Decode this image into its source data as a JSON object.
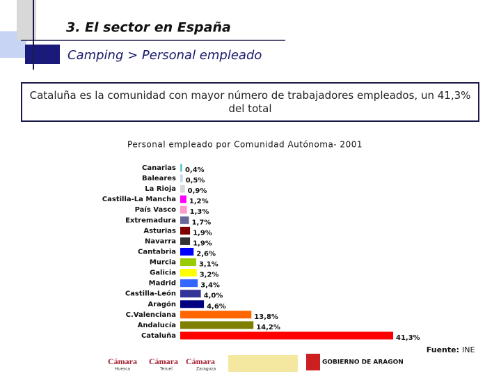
{
  "header": {
    "title": "3. El sector en España",
    "subtitle": "Camping > Personal empleado"
  },
  "callout": {
    "text": "Cataluña es la comunidad con mayor número de trabajadores empleados, un 41,3% del total"
  },
  "chart_data": {
    "type": "bar",
    "orientation": "horizontal",
    "title": "Personal empleado por Comunidad Autónoma- 2001",
    "categories": [
      "Canarias",
      "Baleares",
      "La Rioja",
      "Castilla-La Mancha",
      "País Vasco",
      "Extremadura",
      "Asturias",
      "Navarra",
      "Cantabria",
      "Murcia",
      "Galicia",
      "Madrid",
      "Castilla-León",
      "Aragón",
      "C.Valenciana",
      "Andalucía",
      "Cataluña"
    ],
    "values": [
      0.4,
      0.5,
      0.9,
      1.2,
      1.3,
      1.7,
      1.9,
      1.9,
      2.6,
      3.1,
      3.2,
      3.4,
      4.0,
      4.6,
      13.8,
      14.2,
      41.3
    ],
    "value_labels": [
      "0,4%",
      "0,5%",
      "0,9%",
      "1,2%",
      "1,3%",
      "1,7%",
      "1,9%",
      "1,9%",
      "2,6%",
      "3,1%",
      "3,2%",
      "3,4%",
      "4,0%",
      "4,6%",
      "13,8%",
      "14,2%",
      "41,3%"
    ],
    "colors": [
      "#66cccc",
      "#c8d8ec",
      "#d8d8d8",
      "#ff00ff",
      "#ff99cc",
      "#666699",
      "#800000",
      "#333333",
      "#0000ff",
      "#99cc00",
      "#ffff00",
      "#3366ff",
      "#333399",
      "#000080",
      "#ff6600",
      "#808000",
      "#ff0000"
    ]
  },
  "source": {
    "label": "Fuente:",
    "value": "INE"
  },
  "logos": [
    "Cámara",
    "Huesca",
    "Cámara",
    "Teruel",
    "Cámara",
    "Zaragoza",
    "GOBIERNO DE ARAGON"
  ]
}
